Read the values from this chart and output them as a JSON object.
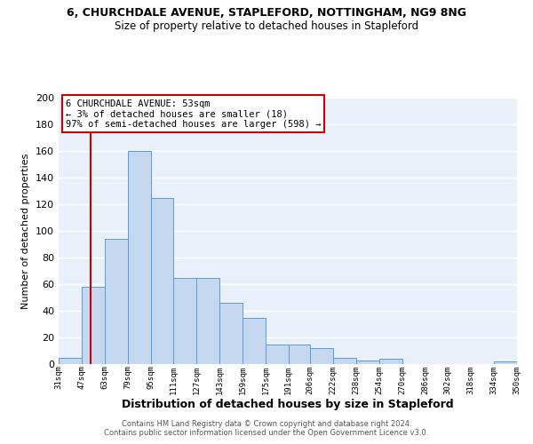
{
  "title1": "6, CHURCHDALE AVENUE, STAPLEFORD, NOTTINGHAM, NG9 8NG",
  "title2": "Size of property relative to detached houses in Stapleford",
  "xlabel": "Distribution of detached houses by size in Stapleford",
  "ylabel": "Number of detached properties",
  "bar_edges": [
    31,
    47,
    63,
    79,
    95,
    111,
    127,
    143,
    159,
    175,
    191,
    206,
    222,
    238,
    254,
    270,
    286,
    302,
    318,
    334,
    350
  ],
  "bar_heights": [
    5,
    58,
    94,
    160,
    125,
    65,
    65,
    46,
    35,
    15,
    15,
    12,
    5,
    3,
    4,
    0,
    0,
    0,
    0,
    2
  ],
  "bar_color": "#c5d8f0",
  "bar_edge_color": "#5b9bd5",
  "property_line_x": 53,
  "property_line_color": "#cc0000",
  "annotation_box_color": "#cc0000",
  "annotation_line1": "6 CHURCHDALE AVENUE: 53sqm",
  "annotation_line2": "← 3% of detached houses are smaller (18)",
  "annotation_line3": "97% of semi-detached houses are larger (598) →",
  "ylim": [
    0,
    200
  ],
  "yticks": [
    0,
    20,
    40,
    60,
    80,
    100,
    120,
    140,
    160,
    180,
    200
  ],
  "tick_labels": [
    "31sqm",
    "47sqm",
    "63sqm",
    "79sqm",
    "95sqm",
    "111sqm",
    "127sqm",
    "143sqm",
    "159sqm",
    "175sqm",
    "191sqm",
    "206sqm",
    "222sqm",
    "238sqm",
    "254sqm",
    "270sqm",
    "286sqm",
    "302sqm",
    "318sqm",
    "334sqm",
    "350sqm"
  ],
  "background_color": "#eaf0f9",
  "grid_color": "#ffffff",
  "footer1": "Contains HM Land Registry data © Crown copyright and database right 2024.",
  "footer2": "Contains public sector information licensed under the Open Government Licence v3.0."
}
